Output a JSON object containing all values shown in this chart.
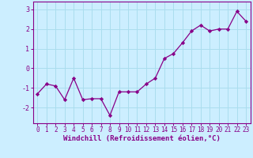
{
  "x": [
    0,
    1,
    2,
    3,
    4,
    5,
    6,
    7,
    8,
    9,
    10,
    11,
    12,
    13,
    14,
    15,
    16,
    17,
    18,
    19,
    20,
    21,
    22,
    23
  ],
  "y": [
    -1.3,
    -0.8,
    -0.9,
    -1.6,
    -0.5,
    -1.6,
    -1.55,
    -1.55,
    -2.4,
    -1.2,
    -1.2,
    -1.2,
    -0.8,
    -0.5,
    0.5,
    0.75,
    1.3,
    1.9,
    2.2,
    1.9,
    2.0,
    2.0,
    2.9,
    2.4
  ],
  "line_color": "#880088",
  "marker": "D",
  "marker_size": 2.2,
  "linewidth": 0.9,
  "xlabel": "Windchill (Refroidissement éolien,°C)",
  "xlabel_fontsize": 6.5,
  "xtick_labels": [
    "0",
    "1",
    "2",
    "3",
    "4",
    "5",
    "6",
    "7",
    "8",
    "9",
    "10",
    "11",
    "12",
    "13",
    "14",
    "15",
    "16",
    "17",
    "18",
    "19",
    "20",
    "21",
    "22",
    "23"
  ],
  "yticks": [
    -2,
    -1,
    0,
    1,
    2,
    3
  ],
  "ylim": [
    -2.8,
    3.4
  ],
  "xlim": [
    -0.5,
    23.5
  ],
  "background_color": "#cceeff",
  "grid_color": "#aaddee",
  "tick_fontsize": 5.5,
  "text_color": "#880088"
}
